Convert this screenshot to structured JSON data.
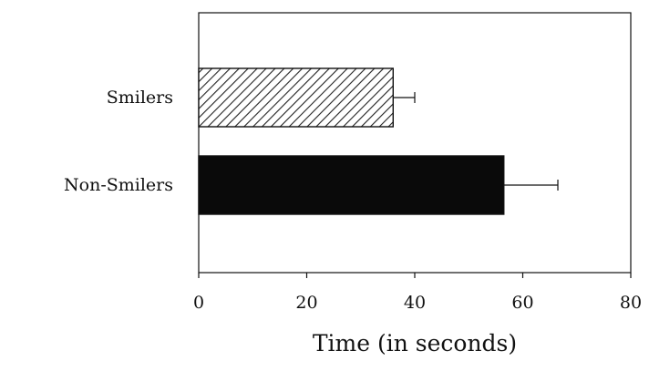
{
  "chart_data": {
    "type": "bar",
    "orientation": "horizontal",
    "categories": [
      "Smilers",
      "Non-Smilers"
    ],
    "values": [
      36,
      56.5
    ],
    "error": [
      4,
      10
    ],
    "xlabel": "Time (in seconds)",
    "ylabel": "",
    "xlim": [
      0,
      80
    ],
    "xticks": [
      0,
      20,
      40,
      60,
      80
    ],
    "xtick_labels": [
      "0",
      "20",
      "40",
      "60",
      "80"
    ],
    "grid": false,
    "bar_styles": [
      "diagonal-hatch",
      "solid-black"
    ],
    "colors": {
      "axis": "#111111",
      "hatch_fill": "#ffffff",
      "hatch_stroke": "#222222",
      "solid_bar": "#0a0a0a"
    }
  }
}
